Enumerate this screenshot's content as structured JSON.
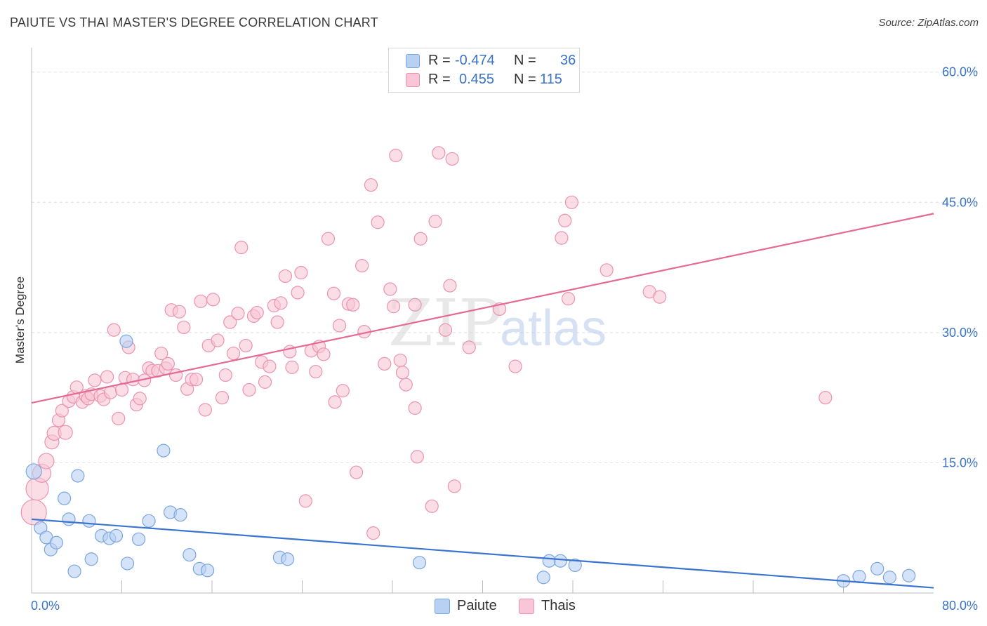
{
  "header": {
    "title": "PAIUTE VS THAI MASTER'S DEGREE CORRELATION CHART",
    "source": "Source: ZipAtlas.com"
  },
  "legend": {
    "series": [
      {
        "name": "Paiute",
        "r_label": "R =",
        "r_value": "-0.474",
        "n_label": "N =",
        "n_value": "36"
      },
      {
        "name": "Thais",
        "r_label": "R =",
        "r_value": "0.455",
        "n_label": "N =",
        "n_value": "115"
      }
    ]
  },
  "watermark": {
    "zip": "ZIP",
    "atlas": "atlas"
  },
  "colors": {
    "paiute_fill": "#b8d1f3",
    "paiute_stroke": "#7aa6e0",
    "paiute_line": "#3a74d0",
    "thai_fill": "#f8c6d6",
    "thai_stroke": "#eb93b0",
    "thai_line": "#e46a95",
    "axis_text": "#3a73c8",
    "grid": "#dddddd"
  },
  "chart_data": {
    "type": "scatter",
    "title": "PAIUTE VS THAI MASTER'S DEGREE CORRELATION CHART",
    "xlabel": "",
    "ylabel": "Master's Degree",
    "xlim": [
      0,
      80
    ],
    "ylim": [
      0,
      62
    ],
    "x_tick_labels": [
      "0.0%",
      "80.0%"
    ],
    "y_ticks": [
      15,
      30,
      45,
      60
    ],
    "y_tick_labels": [
      "15.0%",
      "30.0%",
      "45.0%",
      "60.0%"
    ],
    "series": [
      {
        "name": "Paiute",
        "r": -0.474,
        "n": 36,
        "trend": {
          "x": [
            0,
            80
          ],
          "y": [
            8.5,
            0.6
          ]
        },
        "points": [
          [
            0.2,
            14.0,
            11
          ],
          [
            0.8,
            7.5,
            9
          ],
          [
            1.3,
            6.4,
            9
          ],
          [
            1.7,
            5.0,
            9
          ],
          [
            2.2,
            5.8,
            9
          ],
          [
            2.9,
            10.9,
            9
          ],
          [
            3.3,
            8.5,
            9
          ],
          [
            3.8,
            2.5,
            9
          ],
          [
            4.1,
            13.5,
            9
          ],
          [
            5.1,
            8.3,
            9
          ],
          [
            5.3,
            3.9,
            9
          ],
          [
            6.2,
            6.6,
            9
          ],
          [
            6.9,
            6.3,
            9
          ],
          [
            7.5,
            6.6,
            9
          ],
          [
            8.5,
            3.4,
            9
          ],
          [
            8.4,
            29.0,
            9
          ],
          [
            9.5,
            6.2,
            9
          ],
          [
            10.4,
            8.3,
            9
          ],
          [
            11.7,
            16.4,
            9
          ],
          [
            12.3,
            9.3,
            9
          ],
          [
            13.2,
            9.0,
            9
          ],
          [
            14.0,
            4.4,
            9
          ],
          [
            14.9,
            2.8,
            9
          ],
          [
            15.6,
            2.6,
            9
          ],
          [
            22.0,
            4.1,
            9
          ],
          [
            22.7,
            3.9,
            9
          ],
          [
            34.4,
            3.5,
            9
          ],
          [
            45.4,
            1.8,
            9
          ],
          [
            45.9,
            3.7,
            9
          ],
          [
            46.9,
            3.7,
            9
          ],
          [
            48.2,
            3.2,
            9
          ],
          [
            72.0,
            1.4,
            9
          ],
          [
            73.4,
            1.9,
            9
          ],
          [
            75.0,
            2.8,
            9
          ],
          [
            76.1,
            1.8,
            9
          ],
          [
            77.8,
            2.0,
            9
          ]
        ]
      },
      {
        "name": "Thais",
        "r": 0.455,
        "n": 115,
        "trend": {
          "x": [
            0,
            80
          ],
          "y": [
            21.9,
            43.7
          ]
        },
        "points": [
          [
            0.2,
            9.3,
            18
          ],
          [
            0.5,
            12.0,
            16
          ],
          [
            0.9,
            13.8,
            13
          ],
          [
            1.3,
            15.2,
            11
          ],
          [
            1.8,
            17.4,
            10
          ],
          [
            2.0,
            18.4,
            10
          ],
          [
            2.4,
            19.9,
            9
          ],
          [
            2.7,
            21.0,
            9
          ],
          [
            3.0,
            18.5,
            10
          ],
          [
            3.3,
            22.1,
            9
          ],
          [
            3.7,
            22.6,
            9
          ],
          [
            4.0,
            23.7,
            9
          ],
          [
            4.5,
            22.0,
            9
          ],
          [
            4.8,
            22.7,
            9
          ],
          [
            5.0,
            22.4,
            9
          ],
          [
            5.3,
            22.9,
            9
          ],
          [
            5.6,
            24.5,
            9
          ],
          [
            6.1,
            22.7,
            9
          ],
          [
            6.4,
            22.3,
            9
          ],
          [
            6.7,
            24.9,
            9
          ],
          [
            7.0,
            23.1,
            9
          ],
          [
            7.3,
            30.3,
            9
          ],
          [
            7.7,
            20.1,
            9
          ],
          [
            8.0,
            23.4,
            9
          ],
          [
            8.3,
            24.8,
            9
          ],
          [
            8.6,
            28.3,
            9
          ],
          [
            9.0,
            24.6,
            9
          ],
          [
            9.3,
            21.7,
            9
          ],
          [
            9.6,
            22.4,
            9
          ],
          [
            10.0,
            24.5,
            9
          ],
          [
            10.4,
            25.9,
            9
          ],
          [
            10.7,
            25.6,
            9
          ],
          [
            11.2,
            25.6,
            9
          ],
          [
            11.5,
            27.6,
            9
          ],
          [
            11.9,
            25.9,
            9
          ],
          [
            12.1,
            26.4,
            9
          ],
          [
            12.4,
            32.6,
            9
          ],
          [
            12.8,
            25.1,
            9
          ],
          [
            13.1,
            32.4,
            9
          ],
          [
            13.5,
            30.6,
            9
          ],
          [
            13.8,
            23.5,
            9
          ],
          [
            14.2,
            24.6,
            9
          ],
          [
            14.6,
            24.6,
            9
          ],
          [
            15.0,
            33.6,
            9
          ],
          [
            15.4,
            21.1,
            9
          ],
          [
            15.7,
            28.5,
            9
          ],
          [
            16.1,
            33.8,
            9
          ],
          [
            16.5,
            29.1,
            9
          ],
          [
            16.9,
            22.5,
            9
          ],
          [
            17.2,
            25.1,
            9
          ],
          [
            17.6,
            31.2,
            9
          ],
          [
            17.9,
            27.6,
            9
          ],
          [
            18.3,
            32.2,
            9
          ],
          [
            18.6,
            39.8,
            9
          ],
          [
            19.0,
            28.5,
            9
          ],
          [
            19.3,
            23.4,
            9
          ],
          [
            19.7,
            31.9,
            9
          ],
          [
            20.0,
            32.3,
            9
          ],
          [
            20.4,
            26.6,
            9
          ],
          [
            20.7,
            24.3,
            9
          ],
          [
            21.1,
            26.1,
            9
          ],
          [
            21.5,
            33.1,
            9
          ],
          [
            21.8,
            31.2,
            9
          ],
          [
            22.1,
            33.4,
            9
          ],
          [
            22.5,
            36.5,
            9
          ],
          [
            22.9,
            27.8,
            9
          ],
          [
            23.1,
            26.0,
            9
          ],
          [
            23.6,
            34.6,
            9
          ],
          [
            23.9,
            36.9,
            9
          ],
          [
            24.3,
            10.6,
            9
          ],
          [
            24.8,
            27.9,
            9
          ],
          [
            25.2,
            25.5,
            9
          ],
          [
            25.5,
            28.4,
            9
          ],
          [
            25.9,
            27.5,
            9
          ],
          [
            26.3,
            40.8,
            9
          ],
          [
            26.8,
            34.5,
            9
          ],
          [
            26.9,
            22.0,
            9
          ],
          [
            27.3,
            30.8,
            9
          ],
          [
            27.6,
            23.3,
            9
          ],
          [
            28.1,
            33.3,
            9
          ],
          [
            28.5,
            33.2,
            9
          ],
          [
            28.8,
            13.9,
            9
          ],
          [
            29.3,
            37.7,
            9
          ],
          [
            29.5,
            30.1,
            9
          ],
          [
            30.1,
            47.0,
            9
          ],
          [
            30.3,
            6.9,
            9
          ],
          [
            30.7,
            42.7,
            9
          ],
          [
            31.3,
            26.4,
            9
          ],
          [
            31.8,
            35.0,
            9
          ],
          [
            32.1,
            33.0,
            9
          ],
          [
            32.3,
            50.4,
            9
          ],
          [
            32.7,
            26.8,
            9
          ],
          [
            32.9,
            25.4,
            9
          ],
          [
            33.2,
            24.0,
            9
          ],
          [
            34.0,
            33.2,
            9
          ],
          [
            34.0,
            21.3,
            9
          ],
          [
            34.2,
            15.7,
            9
          ],
          [
            34.5,
            40.8,
            9
          ],
          [
            35.5,
            10.0,
            9
          ],
          [
            35.8,
            42.8,
            9
          ],
          [
            36.1,
            50.7,
            9
          ],
          [
            36.7,
            30.3,
            9
          ],
          [
            37.1,
            35.4,
            9
          ],
          [
            37.3,
            50.0,
            9
          ],
          [
            37.5,
            12.3,
            9
          ],
          [
            38.8,
            28.3,
            9
          ],
          [
            41.5,
            32.7,
            9
          ],
          [
            42.9,
            26.1,
            9
          ],
          [
            47.0,
            40.9,
            9
          ],
          [
            47.3,
            42.9,
            9
          ],
          [
            47.6,
            33.9,
            9
          ],
          [
            47.9,
            45.0,
            9
          ],
          [
            51.0,
            37.2,
            9
          ],
          [
            54.8,
            34.7,
            9
          ],
          [
            55.7,
            34.1,
            9
          ],
          [
            70.4,
            22.5,
            9
          ]
        ]
      }
    ]
  }
}
